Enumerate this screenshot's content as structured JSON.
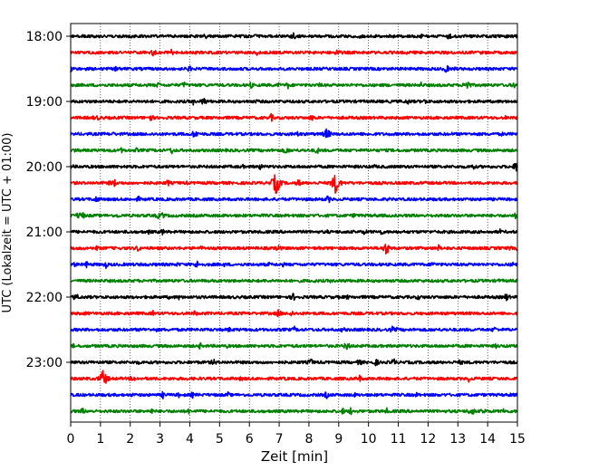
{
  "chart_data": {
    "type": "line",
    "title": "",
    "xlabel": "Zeit  [min]",
    "ylabel": "UTC (Lokalzeit = UTC + 01:00)",
    "xlim": [
      0,
      15
    ],
    "x_ticks": [
      "0",
      "1",
      "2",
      "3",
      "4",
      "5",
      "6",
      "7",
      "8",
      "9",
      "10",
      "11",
      "12",
      "13",
      "14",
      "15"
    ],
    "y_ticks": [
      "18:00",
      "19:00",
      "20:00",
      "21:00",
      "22:00",
      "23:00"
    ],
    "grid": "vertical-dotted",
    "trace_colors": [
      "#000000",
      "#ff0000",
      "#0000ff",
      "#008000"
    ],
    "traces_start": "18:00",
    "trace_interval_min": 15,
    "trace_count": 24,
    "events": [
      {
        "trace": 9,
        "minute": 6.9,
        "amplitude": 14
      },
      {
        "trace": 9,
        "minute": 8.9,
        "amplitude": 13
      },
      {
        "trace": 21,
        "minute": 1.1,
        "amplitude": 11
      },
      {
        "trace": 13,
        "minute": 10.6,
        "amplitude": 8
      },
      {
        "trace": 3,
        "minute": 13.3,
        "amplitude": 7
      },
      {
        "trace": 6,
        "minute": 8.6,
        "amplitude": 7
      },
      {
        "trace": 8,
        "minute": 15.0,
        "amplitude": 8
      },
      {
        "trace": 11,
        "minute": 3.1,
        "amplitude": 4
      }
    ]
  }
}
